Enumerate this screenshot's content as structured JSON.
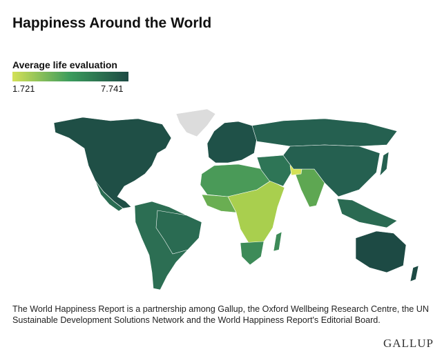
{
  "header": {
    "title": "Happiness Around the World"
  },
  "legend": {
    "title": "Average life evaluation",
    "min": 1.721,
    "max": 7.741,
    "colors": [
      "#d4e157",
      "#3a9b5c",
      "#1d4a44"
    ]
  },
  "footnote": "The World Happiness Report is a partnership among Gallup, the Oxford Wellbeing Research Centre, the UN Sustainable Development Solutions Network and the World Happiness Report's Editorial Board.",
  "logo": "GALLUP"
}
